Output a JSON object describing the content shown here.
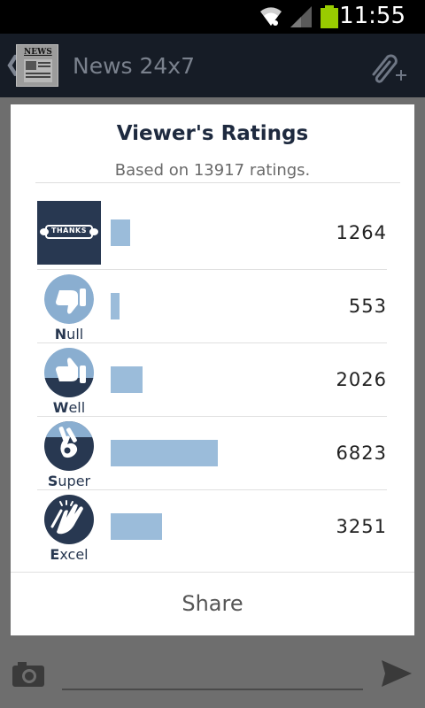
{
  "status_bar": {
    "time": "11:55",
    "icons": [
      "wifi-icon",
      "signal-icon",
      "battery-icon"
    ]
  },
  "app_bar": {
    "title": "News 24x7",
    "logo_text": "NEWS",
    "icons": [
      "back-chevron-icon",
      "attach-add-icon"
    ]
  },
  "dialog": {
    "title": "Viewer's Ratings",
    "subtitle": "Based on 13917 ratings.",
    "ratings": [
      {
        "name": "thanks",
        "badge_text": "THANKS",
        "label_initial": "",
        "label_rest": "",
        "count": "1264",
        "fraction": 0.185
      },
      {
        "name": "null",
        "badge_text": "",
        "label_initial": "N",
        "label_rest": "ull",
        "count": "553",
        "fraction": 0.081
      },
      {
        "name": "well",
        "badge_text": "",
        "label_initial": "W",
        "label_rest": "ell",
        "count": "2026",
        "fraction": 0.297
      },
      {
        "name": "super",
        "badge_text": "",
        "label_initial": "S",
        "label_rest": "uper",
        "count": "6823",
        "fraction": 1.0
      },
      {
        "name": "excel",
        "badge_text": "",
        "label_initial": "E",
        "label_rest": "xcel",
        "count": "3251",
        "fraction": 0.476
      }
    ],
    "share_label": "Share"
  },
  "compose_bar": {
    "icons": [
      "camera-icon",
      "send-icon"
    ]
  },
  "colors": {
    "bar": "#9bbcda",
    "badge_dark": "#283851",
    "badge_light": "#8aaed0",
    "title": "#1e2a3f"
  }
}
